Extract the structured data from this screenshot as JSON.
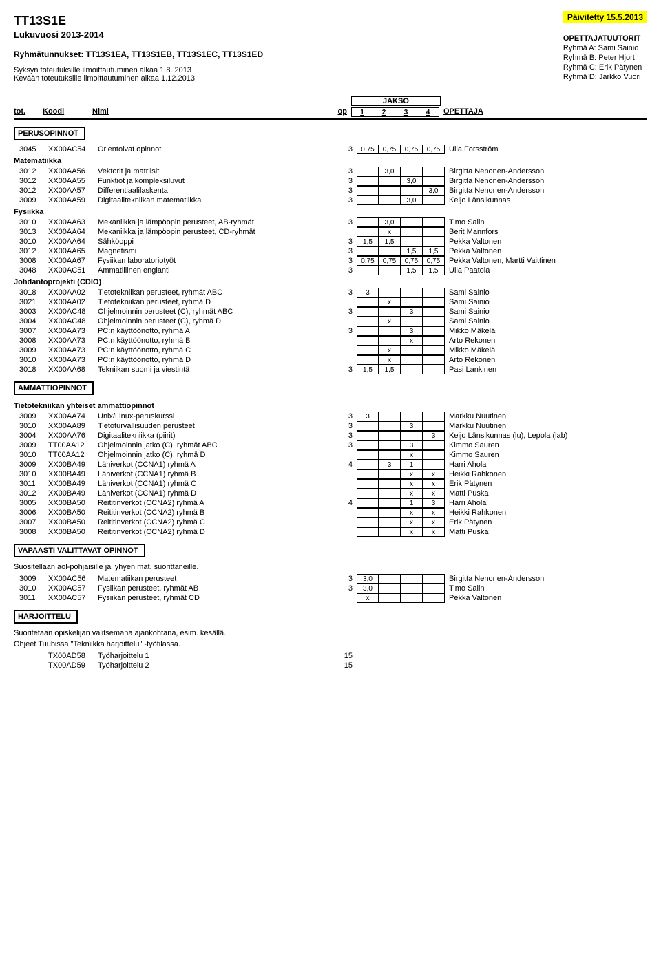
{
  "header": {
    "title": "TT13S1E",
    "subtitle": "Lukuvuosi 2013-2014",
    "updated": "Päivitetty 15.5.2013",
    "groups_label": "Ryhmätunnukset: TT13S1EA, TT13S1EB, TT13S1EC, TT13S1ED",
    "autumn": "Syksyn toteutuksille ilmoittautuminen alkaa 1.8. 2013",
    "spring": "Kevään toteutuksille ilmoittautuminen alkaa 1.12.2013",
    "tutors_title": "OPETTAJATUUTORIT",
    "tutors": [
      "Ryhmä A: Sami Sainio",
      "Ryhmä B: Peter Hjort",
      "Ryhmä C: Erik Pätynen",
      "Ryhmä D: Jarkko Vuori"
    ]
  },
  "cols": {
    "jakso": "JAKSO",
    "tot": "tot.",
    "koodi": "Koodi",
    "nimi": "Nimi",
    "op": "op",
    "j1": "1",
    "j2": "2",
    "j3": "3",
    "j4": "4",
    "opettaja": "OPETTAJA"
  },
  "sections": [
    {
      "title": "PERUSOPINNOT",
      "boxed": true,
      "groups": [
        {
          "label": "",
          "rows": [
            {
              "tot": "3045",
              "koodi": "XX00AC54",
              "nimi": "Orientoivat opinnot",
              "op": "3",
              "j": [
                "0,75",
                "0,75",
                "0,75",
                "0,75"
              ],
              "teacher": "Ulla Forsström"
            }
          ]
        },
        {
          "label": "Matematiikka",
          "rows": [
            {
              "tot": "3012",
              "koodi": "XX00AA56",
              "nimi": "Vektorit ja matriisit",
              "op": "3",
              "j": [
                "",
                "3,0",
                "",
                ""
              ],
              "teacher": "Birgitta Nenonen-Andersson"
            },
            {
              "tot": "3012",
              "koodi": "XX00AA55",
              "nimi": "Funktiot ja kompleksiluvut",
              "op": "3",
              "j": [
                "",
                "",
                "3,0",
                ""
              ],
              "teacher": "Birgitta Nenonen-Andersson"
            },
            {
              "tot": "3012",
              "koodi": "XX00AA57",
              "nimi": "Differentiaalilaskenta",
              "op": "3",
              "j": [
                "",
                "",
                "",
                "3,0"
              ],
              "teacher": "Birgitta Nenonen-Andersson"
            },
            {
              "tot": "3009",
              "koodi": "XX00AA59",
              "nimi": "Digitaalitekniikan matematiikka",
              "op": "3",
              "j": [
                "",
                "",
                "3,0",
                ""
              ],
              "teacher": "Keijo Länsikunnas"
            }
          ]
        },
        {
          "label": "Fysiikka",
          "rows": [
            {
              "tot": "3010",
              "koodi": "XX00AA63",
              "nimi": "Mekaniikka ja lämpöopin perusteet, AB-ryhmät",
              "op": "3",
              "j": [
                "",
                "3,0",
                "",
                ""
              ],
              "teacher": "Timo Salin"
            },
            {
              "tot": "3013",
              "koodi": "XX00AA64",
              "nimi": "Mekaniikka ja lämpöopin perusteet, CD-ryhmät",
              "op": "",
              "j": [
                "",
                "x",
                "",
                ""
              ],
              "teacher": "Berit Mannfors"
            },
            {
              "tot": "3010",
              "koodi": "XX00AA64",
              "nimi": "Sähköoppi",
              "op": "3",
              "j": [
                "1,5",
                "1,5",
                "",
                ""
              ],
              "teacher": "Pekka Valtonen"
            },
            {
              "tot": "3012",
              "koodi": "XX00AA65",
              "nimi": "Magnetismi",
              "op": "3",
              "j": [
                "",
                "",
                "1,5",
                "1,5"
              ],
              "teacher": "Pekka Valtonen"
            },
            {
              "tot": "3008",
              "koodi": "XX00AA67",
              "nimi": "Fysiikan laboratoriotyöt",
              "op": "3",
              "j": [
                "0,75",
                "0,75",
                "0,75",
                "0,75"
              ],
              "teacher": "Pekka Valtonen, Martti Vaittinen"
            },
            {
              "tot": "3048",
              "koodi": "XX00AC51",
              "nimi": "Ammatillinen englanti",
              "op": "3",
              "j": [
                "",
                "",
                "1,5",
                "1,5"
              ],
              "teacher": "Ulla Paatola"
            }
          ]
        },
        {
          "label": "Johdantoprojekti (CDIO)",
          "rows": [
            {
              "tot": "3018",
              "koodi": "XX00AA02",
              "nimi": "Tietotekniikan perusteet, ryhmät ABC",
              "op": "3",
              "j": [
                "3",
                "",
                "",
                ""
              ],
              "teacher": "Sami Sainio"
            },
            {
              "tot": "3021",
              "koodi": "XX00AA02",
              "nimi": "Tietotekniikan perusteet, ryhmä D",
              "op": "",
              "j": [
                "",
                "x",
                "",
                ""
              ],
              "teacher": "Sami Sainio"
            },
            {
              "tot": "3003",
              "koodi": "XX00AC48",
              "nimi": "Ohjelmoinnin perusteet (C), ryhmät ABC",
              "op": "3",
              "j": [
                "",
                "",
                "3",
                ""
              ],
              "teacher": "Sami Sainio"
            },
            {
              "tot": "3004",
              "koodi": "XX00AC48",
              "nimi": "Ohjelmoinnin perusteet (C), ryhmä D",
              "op": "",
              "j": [
                "",
                "x",
                "",
                ""
              ],
              "teacher": "Sami Sainio"
            },
            {
              "tot": "3007",
              "koodi": "XX00AA73",
              "nimi": "PC:n käyttöönotto, ryhmä A",
              "op": "3",
              "j": [
                "",
                "",
                "3",
                ""
              ],
              "teacher": "Mikko Mäkelä"
            },
            {
              "tot": "3008",
              "koodi": "XX00AA73",
              "nimi": "PC:n käyttöönotto, ryhmä B",
              "op": "",
              "j": [
                "",
                "",
                "x",
                ""
              ],
              "teacher": "Arto Rekonen"
            },
            {
              "tot": "3009",
              "koodi": "XX00AA73",
              "nimi": "PC:n käyttöönotto, ryhmä C",
              "op": "",
              "j": [
                "",
                "x",
                "",
                ""
              ],
              "teacher": "Mikko Mäkelä"
            },
            {
              "tot": "3010",
              "koodi": "XX00AA73",
              "nimi": "PC:n käyttöönotto, ryhmä D",
              "op": "",
              "j": [
                "",
                "x",
                "",
                ""
              ],
              "teacher": "Arto Rekonen"
            },
            {
              "tot": "3018",
              "koodi": "XX00AA68",
              "nimi": "Tekniikan suomi ja viestintä",
              "op": "3",
              "j": [
                "1,5",
                "1,5",
                "",
                ""
              ],
              "teacher": "Pasi Lankinen"
            }
          ]
        }
      ]
    },
    {
      "title": "AMMATTIOPINNOT",
      "boxed": true,
      "groups": [
        {
          "label": "Tietotekniikan yhteiset ammattiopinnot",
          "rows": [
            {
              "tot": "3009",
              "koodi": "XX00AA74",
              "nimi": "Unix/Linux-peruskurssi",
              "op": "3",
              "j": [
                "3",
                "",
                "",
                ""
              ],
              "teacher": "Markku Nuutinen"
            },
            {
              "tot": "3010",
              "koodi": "XX00AA89",
              "nimi": "Tietoturvallisuuden perusteet",
              "op": "3",
              "j": [
                "",
                "",
                "3",
                ""
              ],
              "teacher": "Markku Nuutinen"
            },
            {
              "tot": "3004",
              "koodi": "XX00AA76",
              "nimi": "Digitaalitekniikka (piirit)",
              "op": "3",
              "j": [
                "",
                "",
                "",
                "3"
              ],
              "teacher": "Keijo Länsikunnas (lu), Lepola (lab)"
            },
            {
              "tot": "3009",
              "koodi": "TT00AA12",
              "nimi": "Ohjelmoinnin jatko (C), ryhmät ABC",
              "op": "3",
              "j": [
                "",
                "",
                "3",
                ""
              ],
              "teacher": "Kimmo Sauren"
            },
            {
              "tot": "3010",
              "koodi": "TT00AA12",
              "nimi": "Ohjelmoinnin jatko (C), ryhmä D",
              "op": "",
              "j": [
                "",
                "",
                "x",
                ""
              ],
              "teacher": "Kimmo Sauren"
            },
            {
              "tot": "3009",
              "koodi": "XX00BA49",
              "nimi": "Lähiverkot (CCNA1) ryhmä A",
              "op": "4",
              "j": [
                "",
                "3",
                "1",
                ""
              ],
              "teacher": "Harri Ahola"
            },
            {
              "tot": "3010",
              "koodi": "XX00BA49",
              "nimi": "Lähiverkot (CCNA1) ryhmä B",
              "op": "",
              "j": [
                "",
                "",
                "x",
                "x"
              ],
              "teacher": "Heikki Rahkonen"
            },
            {
              "tot": "3011",
              "koodi": "XX00BA49",
              "nimi": "Lähiverkot (CCNA1) ryhmä C",
              "op": "",
              "j": [
                "",
                "",
                "x",
                "x"
              ],
              "teacher": "Erik Pätynen"
            },
            {
              "tot": "3012",
              "koodi": "XX00BA49",
              "nimi": "Lähiverkot (CCNA1) ryhmä D",
              "op": "",
              "j": [
                "",
                "",
                "x",
                "x"
              ],
              "teacher": "Matti Puska"
            },
            {
              "tot": "3005",
              "koodi": "XX00BA50",
              "nimi": "Reititinverkot (CCNA2) ryhmä A",
              "op": "4",
              "j": [
                "",
                "",
                "1",
                "3"
              ],
              "teacher": "Harri Ahola"
            },
            {
              "tot": "3006",
              "koodi": "XX00BA50",
              "nimi": "Reititinverkot (CCNA2) ryhmä B",
              "op": "",
              "j": [
                "",
                "",
                "x",
                "x"
              ],
              "teacher": "Heikki Rahkonen"
            },
            {
              "tot": "3007",
              "koodi": "XX00BA50",
              "nimi": "Reititinverkot (CCNA2) ryhmä C",
              "op": "",
              "j": [
                "",
                "",
                "x",
                "x"
              ],
              "teacher": "Erik Pätynen"
            },
            {
              "tot": "3008",
              "koodi": "XX00BA50",
              "nimi": "Reititinverkot (CCNA2) ryhmä D",
              "op": "",
              "j": [
                "",
                "",
                "x",
                "x"
              ],
              "teacher": "Matti Puska"
            }
          ]
        }
      ]
    },
    {
      "title": "VAPAASTI VALITTAVAT OPINNOT",
      "boxed": true,
      "note": "Suositellaan aol-pohjaisille ja lyhyen mat. suorittaneille.",
      "groups": [
        {
          "label": "",
          "rows": [
            {
              "tot": "3009",
              "koodi": "XX00AC56",
              "nimi": "Matematiikan perusteet",
              "op": "3",
              "j": [
                "3,0",
                "",
                "",
                ""
              ],
              "teacher": "Birgitta Nenonen-Andersson"
            },
            {
              "tot": "3010",
              "koodi": "XX00AC57",
              "nimi": "Fysiikan perusteet, ryhmät AB",
              "op": "3",
              "j": [
                "3,0",
                "",
                "",
                ""
              ],
              "teacher": "Timo Salin"
            },
            {
              "tot": "3011",
              "koodi": "XX00AC57",
              "nimi": "Fysiikan perusteet, ryhmät CD",
              "op": "",
              "j": [
                "x",
                "",
                "",
                ""
              ],
              "teacher": "Pekka Valtonen"
            }
          ]
        }
      ]
    },
    {
      "title": "HARJOITTELU",
      "boxed": true,
      "note": "Suoritetaan opiskelijan valitsemana ajankohtana, esim. kesällä.",
      "note2": "Ohjeet Tuubissa \"Tekniikka harjoittelu\" -työtilassa.",
      "groups": [
        {
          "label": "",
          "rows": [
            {
              "tot": "",
              "koodi": "TX00AD58",
              "nimi": "Työharjoittelu 1",
              "op": "15",
              "j": null,
              "teacher": ""
            },
            {
              "tot": "",
              "koodi": "TX00AD59",
              "nimi": "Työharjoittelu 2",
              "op": "15",
              "j": null,
              "teacher": ""
            }
          ]
        }
      ]
    }
  ]
}
